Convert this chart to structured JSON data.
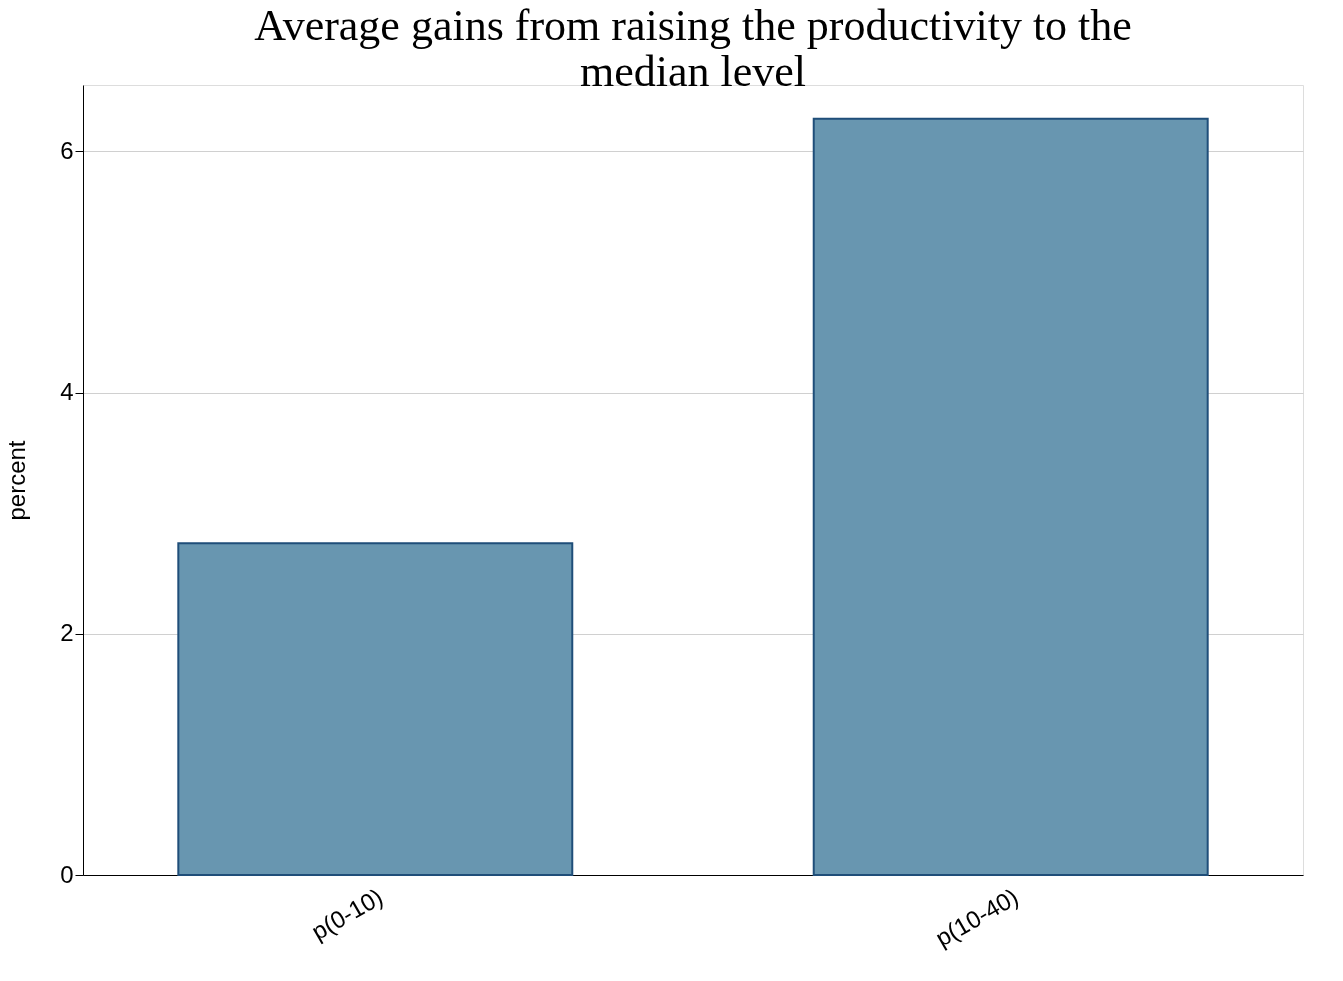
{
  "chart_data": {
    "type": "bar",
    "title": "Average gains from raising the productivity to the median level",
    "ylabel": "percent",
    "categories": [
      "p(0-10)",
      "p(10-40)"
    ],
    "values": [
      2.75,
      6.27
    ],
    "color": "#6896b0",
    "ylim": [
      0,
      6.55
    ],
    "yticks": [
      0,
      2,
      4,
      6
    ],
    "grid": "y"
  }
}
